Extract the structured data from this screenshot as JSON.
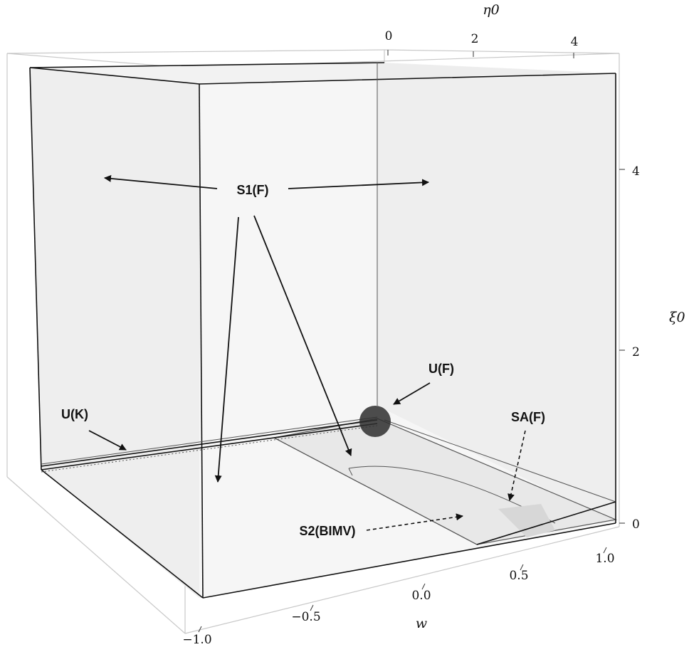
{
  "axes": {
    "eta0": {
      "label": "η0",
      "ticks": [
        "0",
        "2",
        "4"
      ]
    },
    "xi0": {
      "label": "ξ0",
      "ticks": [
        "0",
        "2",
        "4"
      ]
    },
    "w": {
      "label": "w",
      "ticks": [
        "−1.0",
        "−0.5",
        "0.0",
        "0.5",
        "1.0"
      ]
    }
  },
  "regions": {
    "s1f": "S1(F)",
    "uk": "U(K)",
    "uf": "U(F)",
    "saf": "SA(F)",
    "s2bimv": "S2(BIMV)"
  }
}
